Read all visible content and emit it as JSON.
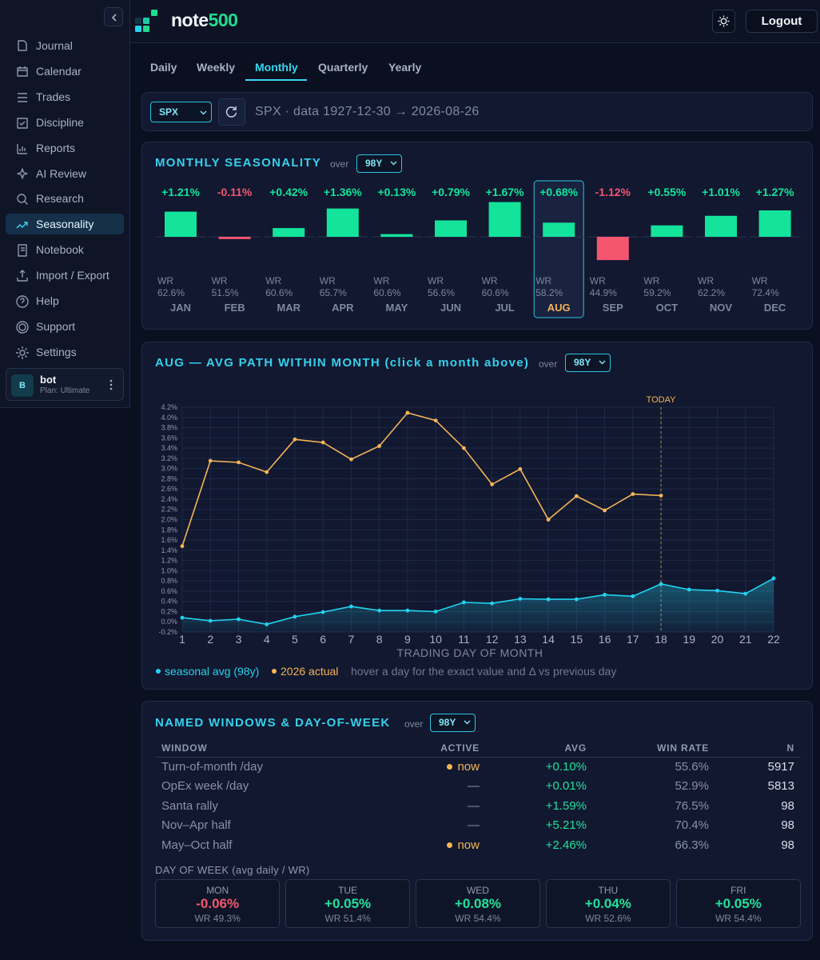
{
  "sidebar": {
    "items": [
      "Journal",
      "Calendar",
      "Trades",
      "Discipline",
      "Reports",
      "AI Review",
      "Research",
      "Seasonality",
      "Notebook",
      "Import / Export",
      "Help",
      "Support",
      "Settings"
    ],
    "active": 7,
    "user": {
      "avatar": "B",
      "name": "bot",
      "plan": "Plan: Ultimate"
    }
  },
  "header": {
    "brand": [
      "note",
      "500"
    ],
    "button": "Logout"
  },
  "tabs": {
    "items": [
      "Daily",
      "Weekly",
      "Monthly",
      "Quarterly",
      "Yearly"
    ],
    "active": 2
  },
  "toolbar": {
    "symbol": "SPX",
    "info": "SPX · data 1927-12-30 → 2026-08-26"
  },
  "seasonality": {
    "type": "bar",
    "title": "MONTHLY SEASONALITY",
    "over": "over",
    "window": "98Y",
    "categories": [
      "JAN",
      "FEB",
      "MAR",
      "APR",
      "MAY",
      "JUN",
      "JUL",
      "AUG",
      "SEP",
      "OCT",
      "NOV",
      "DEC"
    ],
    "values": [
      1.21,
      -0.11,
      0.42,
      1.36,
      0.13,
      0.79,
      1.67,
      0.68,
      -1.12,
      0.55,
      1.01,
      1.27
    ],
    "value_labels": [
      "+1.21%",
      "-0.11%",
      "+0.42%",
      "+1.36%",
      "+0.13%",
      "+0.79%",
      "+1.67%",
      "+0.68%",
      "-1.12%",
      "+0.55%",
      "+1.01%",
      "+1.27%"
    ],
    "wr_label": "WR",
    "win_rates": [
      "62.6%",
      "51.5%",
      "60.6%",
      "65.7%",
      "60.6%",
      "56.6%",
      "60.6%",
      "58.2%",
      "44.9%",
      "59.2%",
      "62.2%",
      "72.4%"
    ],
    "selected": 7,
    "colors": {
      "positive": "#14e39b",
      "negative": "#f4566f"
    }
  },
  "path_chart": {
    "type": "line",
    "title": "AUG — AVG PATH WITHIN MONTH (click a month above)",
    "over": "over",
    "window": "98Y",
    "x": [
      1,
      2,
      3,
      4,
      5,
      6,
      7,
      8,
      9,
      10,
      11,
      12,
      13,
      14,
      15,
      16,
      17,
      18,
      19,
      20,
      21,
      22
    ],
    "xlim": [
      1,
      22
    ],
    "xticks": [
      1,
      2,
      3,
      4,
      5,
      6,
      7,
      8,
      9,
      10,
      11,
      12,
      13,
      14,
      15,
      16,
      17,
      18,
      19,
      20,
      21,
      22
    ],
    "xlabel": "TRADING DAY OF MONTH",
    "ylim": [
      -0.2,
      4.2
    ],
    "yticks": [
      {
        "value": -0.2,
        "label": "-0.2%"
      },
      {
        "value": 0.0,
        "label": "0.0%"
      },
      {
        "value": 0.2,
        "label": "0.2%"
      },
      {
        "value": 0.4,
        "label": "0.4%"
      },
      {
        "value": 0.6,
        "label": "0.6%"
      },
      {
        "value": 0.8,
        "label": "0.8%"
      },
      {
        "value": 1.0,
        "label": "1.0%"
      },
      {
        "value": 1.2,
        "label": "1.2%"
      },
      {
        "value": 1.4,
        "label": "1.4%"
      },
      {
        "value": 1.6,
        "label": "1.6%"
      },
      {
        "value": 1.8,
        "label": "1.8%"
      },
      {
        "value": 2.0,
        "label": "2.0%"
      },
      {
        "value": 2.2,
        "label": "2.2%"
      },
      {
        "value": 2.4,
        "label": "2.4%"
      },
      {
        "value": 2.6,
        "label": "2.6%"
      },
      {
        "value": 2.8,
        "label": "2.8%"
      },
      {
        "value": 3.0,
        "label": "3.0%"
      },
      {
        "value": 3.2,
        "label": "3.2%"
      },
      {
        "value": 3.4,
        "label": "3.4%"
      },
      {
        "value": 3.6,
        "label": "3.6%"
      },
      {
        "value": 3.8,
        "label": "3.8%"
      },
      {
        "value": 4.0,
        "label": "4.0%"
      },
      {
        "value": 4.2,
        "label": "4.2%"
      }
    ],
    "grid": true,
    "marker": {
      "x": 18,
      "label": "TODAY"
    },
    "series": [
      {
        "name": "seasonal avg (98y)",
        "color": "#22d3ee",
        "area": true,
        "values": [
          0.08,
          0.02,
          0.05,
          -0.05,
          0.1,
          0.19,
          0.3,
          0.22,
          0.22,
          0.2,
          0.38,
          0.36,
          0.45,
          0.44,
          0.44,
          0.53,
          0.5,
          0.74,
          0.63,
          0.61,
          0.55,
          0.85
        ]
      },
      {
        "name": "2026 actual",
        "color": "#f5b556",
        "values": [
          1.48,
          3.15,
          3.12,
          2.93,
          3.57,
          3.51,
          3.18,
          3.44,
          4.09,
          3.94,
          3.4,
          2.69,
          2.99,
          2.0,
          2.46,
          2.18,
          2.5,
          2.47,
          null,
          null,
          null,
          null
        ]
      }
    ],
    "note": "hover a day for the exact value and Δ vs previous day"
  },
  "windows": {
    "title": "NAMED WINDOWS & DAY-OF-WEEK",
    "over": "over",
    "window": "98Y",
    "columns": [
      "WINDOW",
      "ACTIVE",
      "AVG",
      "WIN RATE",
      "N"
    ],
    "rows": [
      [
        "Turn-of-month /day",
        "now",
        "+0.10%",
        "55.6%",
        "5917"
      ],
      [
        "OpEx week /day",
        "—",
        "+0.01%",
        "52.9%",
        "5813"
      ],
      [
        "Santa rally",
        "—",
        "+1.59%",
        "76.5%",
        "98"
      ],
      [
        "Nov–Apr half",
        "—",
        "+5.21%",
        "70.4%",
        "98"
      ],
      [
        "May–Oct half",
        "now",
        "+2.46%",
        "66.3%",
        "98"
      ]
    ],
    "dow_title": "DAY OF WEEK (avg daily / WR)",
    "days": [
      {
        "name": "MON",
        "avg": "-0.06%",
        "wr": "WR 49.3%"
      },
      {
        "name": "TUE",
        "avg": "+0.05%",
        "wr": "WR 51.4%"
      },
      {
        "name": "WED",
        "avg": "+0.08%",
        "wr": "WR 54.4%"
      },
      {
        "name": "THU",
        "avg": "+0.04%",
        "wr": "WR 52.6%"
      },
      {
        "name": "FRI",
        "avg": "+0.05%",
        "wr": "WR 54.4%"
      }
    ]
  }
}
